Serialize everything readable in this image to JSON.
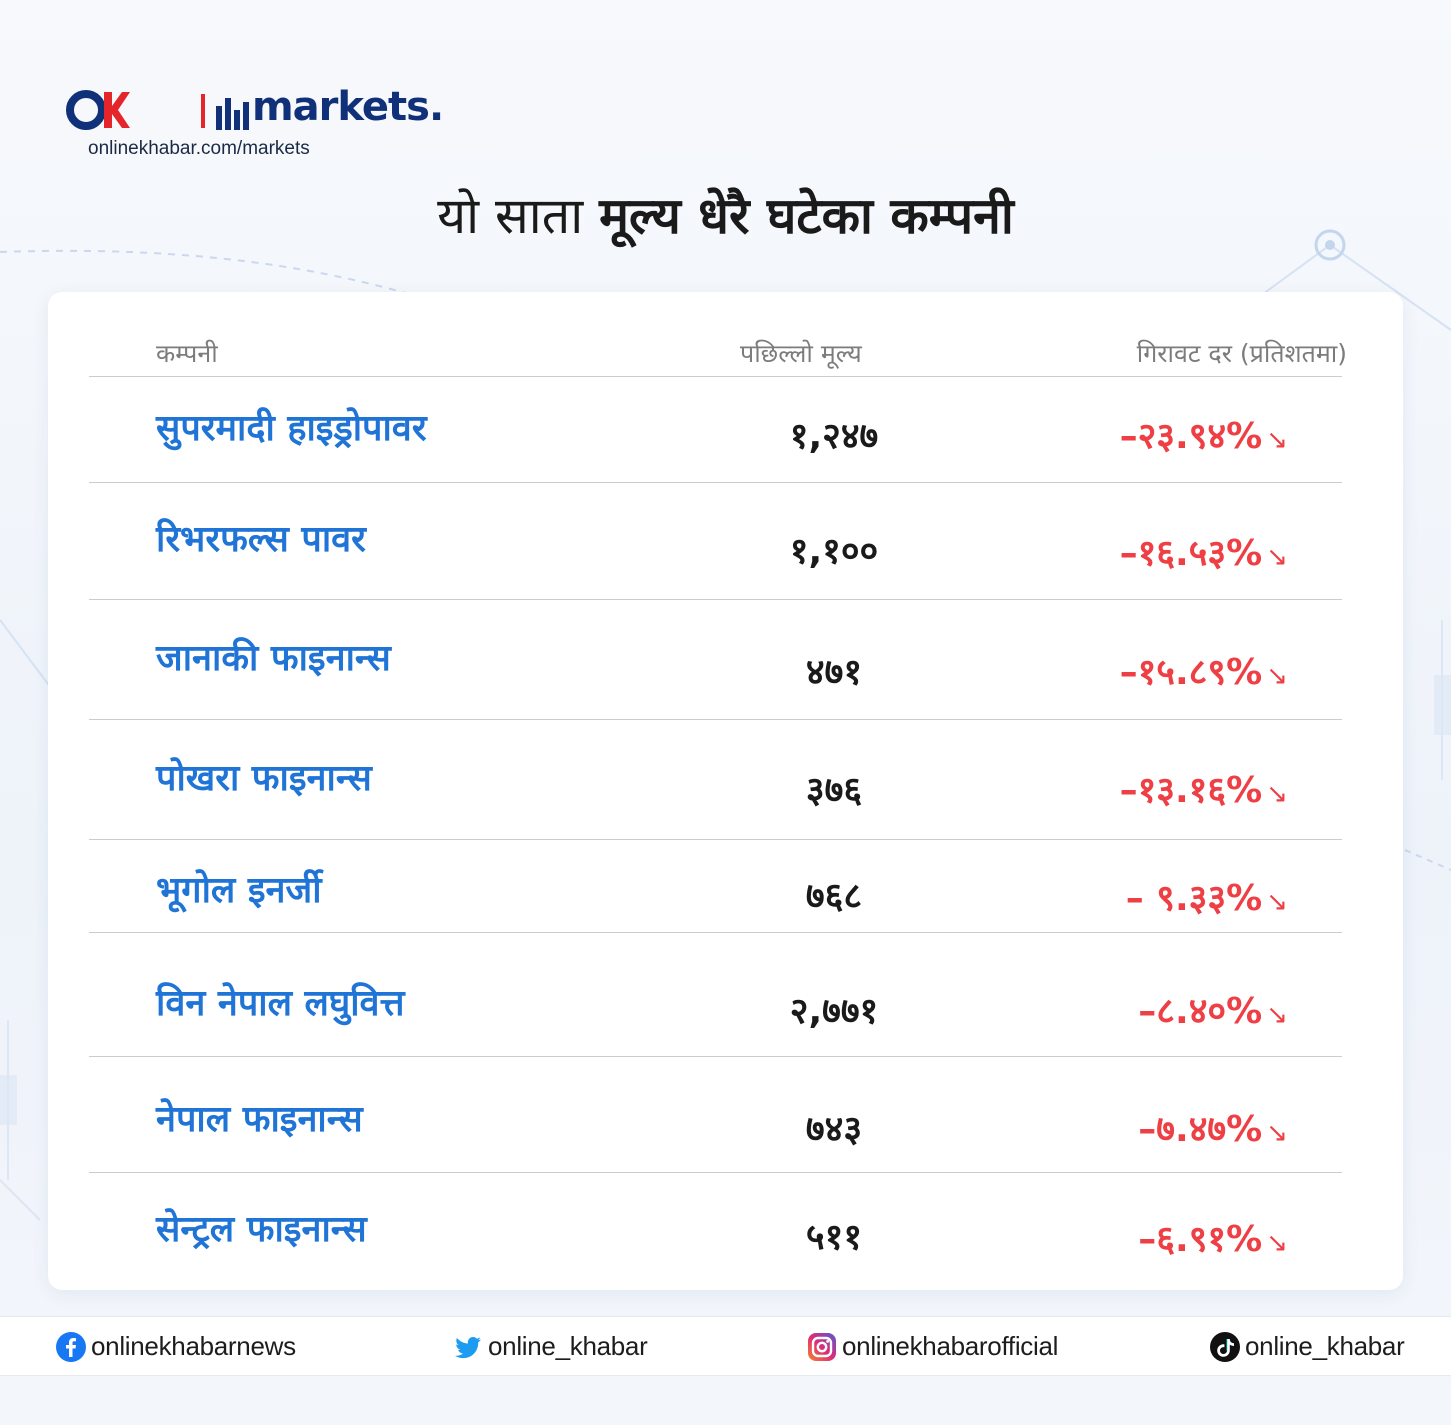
{
  "brand": {
    "logo_word": "markets.",
    "url": "onlinekhabar.com/markets"
  },
  "title": {
    "regular": "यो साता",
    "bold": "मूल्य धेरै घटेका कम्पनी"
  },
  "table": {
    "headers": {
      "company": "कम्पनी",
      "price": "पछिल्लो मूल्य",
      "change": "गिरावट दर (प्रतिशतमा)"
    },
    "rows": [
      {
        "company": "सुपरमादी हाइड्रोपावर",
        "price": "१,२४७",
        "change": "–२३.९४%"
      },
      {
        "company": "रिभरफल्स पावर",
        "price": "१,१००",
        "change": "–१६.५३%"
      },
      {
        "company": "जानाकी फाइनान्स",
        "price": "४७१",
        "change": "–१५.८९%"
      },
      {
        "company": "पोखरा फाइनान्स",
        "price": "३७६",
        "change": "–१३.१६%"
      },
      {
        "company": "भूगोल इनर्जी",
        "price": "७६८",
        "change": "– ९.३३%"
      },
      {
        "company": "विन नेपाल लघुवित्त",
        "price": "२,७७१",
        "change": "–८.४०%"
      },
      {
        "company": "नेपाल फाइनान्स",
        "price": "७४३",
        "change": "–७.४७%"
      },
      {
        "company": "सेन्ट्रल फाइनान्स",
        "price": "५११",
        "change": "–६.९१%"
      }
    ],
    "down_arrow_icon": "arrow-down-right-icon"
  },
  "footer": {
    "facebook": "onlinekhabarnews",
    "twitter": "online_khabar",
    "instagram": "onlinekhabarofficial",
    "tiktok": "online_khabar"
  },
  "colors": {
    "brand_blue": "#10317a",
    "company_blue": "#1f74d6",
    "decline_red": "#ee3f45",
    "logo_red": "#e4262a"
  }
}
